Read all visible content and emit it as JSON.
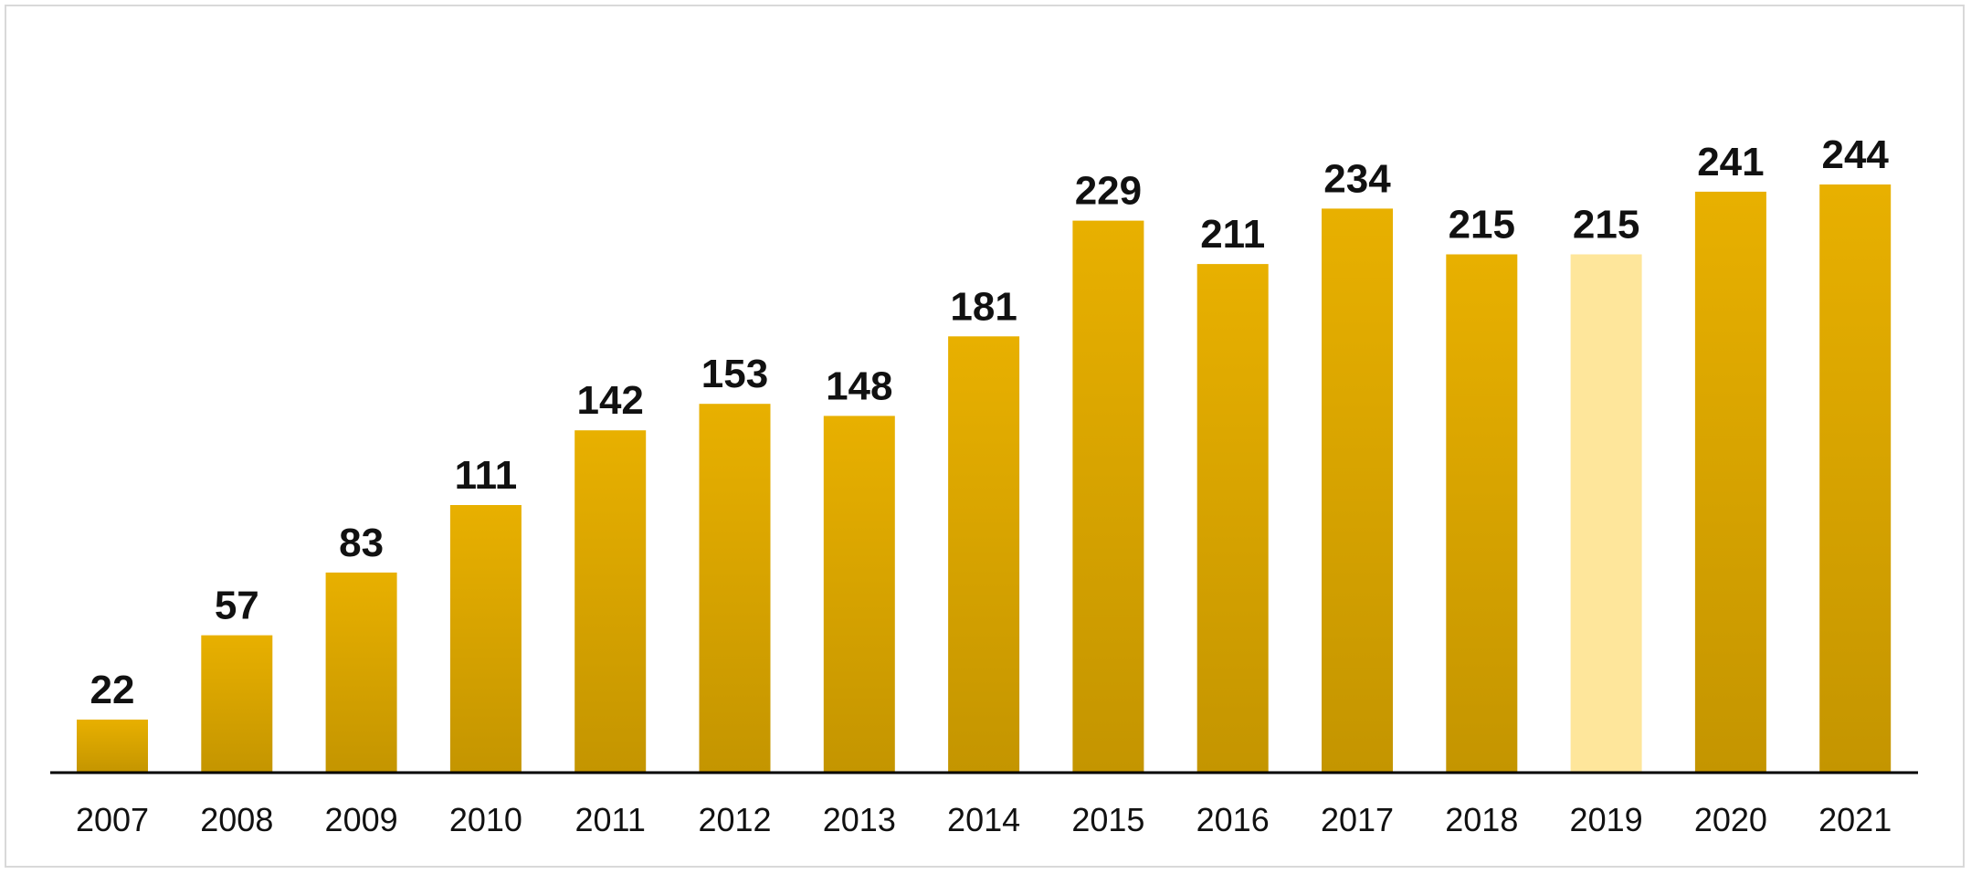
{
  "chart_data": {
    "type": "bar",
    "categories": [
      "2007",
      "2008",
      "2009",
      "2010",
      "2011",
      "2012",
      "2013",
      "2014",
      "2015",
      "2016",
      "2017",
      "2018",
      "2019",
      "2020",
      "2021"
    ],
    "values": [
      22,
      57,
      83,
      111,
      142,
      153,
      148,
      181,
      229,
      211,
      234,
      215,
      215,
      241,
      244
    ],
    "data_labels": [
      "22",
      "57",
      "83",
      "111",
      "142",
      "153",
      "148",
      "181",
      "229",
      "211",
      "234",
      "215",
      "215",
      "241",
      "244"
    ],
    "title": "",
    "xlabel": "",
    "ylabel": "",
    "ylim": [
      0,
      250
    ],
    "grid": false,
    "legend": "none",
    "highlighted_category": "2019",
    "colors": {
      "bar_top": "#e8b000",
      "bar_bottom": "#c49500",
      "highlight_bar": "#fee69b",
      "axis": "#000000",
      "frame_border": "#d9d9d9"
    }
  }
}
